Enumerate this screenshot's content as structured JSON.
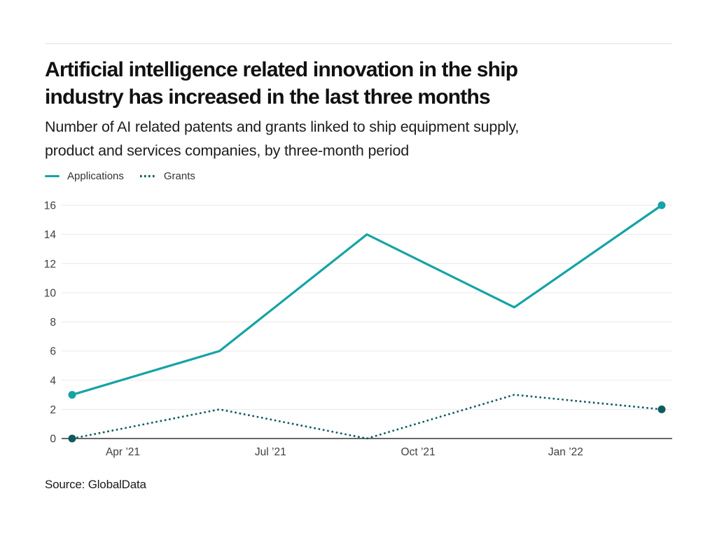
{
  "header": {
    "title_lines": [
      "Artificial intelligence related innovation in the ship",
      "industry has increased in the last three months"
    ],
    "subtitle_lines": [
      "Number of AI related patents and grants linked to ship equipment supply,",
      "product and services companies, by three-month period"
    ]
  },
  "legend": {
    "items": [
      {
        "label": "Applications",
        "style": "solid",
        "color": "#16a3a6"
      },
      {
        "label": "Grants",
        "style": "dotted",
        "color": "#0e5a60"
      }
    ]
  },
  "footer": {
    "source": "Source: GlobalData"
  },
  "colors": {
    "applications_line": "#16a3a6",
    "grants_line": "#0e5a60",
    "gridline": "#e9e9e9",
    "axis_line": "#686868",
    "tick_text": "#3f3f3f"
  },
  "chart_data": {
    "type": "line",
    "title": "Artificial intelligence related innovation in the ship industry has increased in the last three months",
    "subtitle": "Number of AI related patents and grants linked to ship equipment supply, product and services companies, by three-month period",
    "x_tick_labels": [
      "Apr ’21",
      "Jul ’21",
      "Oct ’21",
      "Jan ’22"
    ],
    "y_ticks": [
      0,
      2,
      4,
      6,
      8,
      10,
      12,
      14,
      16
    ],
    "ylim": [
      0,
      16
    ],
    "grid": "horizontal",
    "legend_position": "top-left",
    "xlabel": "",
    "ylabel": "",
    "series": [
      {
        "name": "Applications",
        "values": [
          3,
          6,
          14,
          9,
          16
        ],
        "color": "#16a3a6",
        "line_style": "solid",
        "endpoint_markers": true
      },
      {
        "name": "Grants",
        "values": [
          0,
          2,
          0,
          3,
          2
        ],
        "color": "#0e5a60",
        "line_style": "dotted",
        "endpoint_markers": true
      }
    ]
  }
}
